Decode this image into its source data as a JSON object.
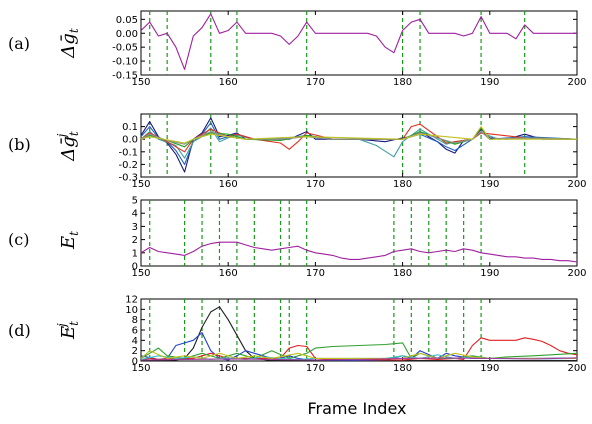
{
  "xlabel": "Frame Index",
  "chart_data": [
    {
      "type": "line",
      "panel_label": "(a)",
      "ylabel": "Δḡ_t",
      "xlim": [
        150,
        200
      ],
      "ylim": [
        -0.15,
        0.08
      ],
      "xticks": [
        "150",
        "160",
        "170",
        "180",
        "190",
        "200"
      ],
      "yticks": [
        "0.05",
        "0.00",
        "-0.05",
        "-0.10",
        "-0.15"
      ],
      "vlines": [
        151,
        153,
        158,
        161,
        169,
        180,
        182,
        189,
        194
      ],
      "series": [
        {
          "color": "#a020a0",
          "x": [
            150,
            151,
            152,
            153,
            154,
            155,
            156,
            157,
            158,
            159,
            160,
            161,
            162,
            163,
            164,
            165,
            166,
            167,
            168,
            169,
            170,
            171,
            172,
            173,
            174,
            175,
            176,
            177,
            178,
            179,
            180,
            181,
            182,
            183,
            184,
            185,
            186,
            187,
            188,
            189,
            190,
            191,
            192,
            193,
            194,
            195,
            196,
            197,
            198,
            199,
            200
          ],
          "y": [
            0.01,
            0.04,
            -0.01,
            0.0,
            -0.05,
            -0.13,
            -0.01,
            0.02,
            0.07,
            0.0,
            0.01,
            0.04,
            0.0,
            0.0,
            0.0,
            0.0,
            -0.01,
            -0.04,
            -0.01,
            0.04,
            0.0,
            0.0,
            0.0,
            0.0,
            0.0,
            0.0,
            0.0,
            -0.01,
            -0.05,
            -0.07,
            0.01,
            0.04,
            0.05,
            0.0,
            0.0,
            0.0,
            0.0,
            -0.01,
            0.0,
            0.06,
            0.0,
            0.0,
            0.0,
            -0.02,
            0.03,
            0.0,
            0.0,
            0.0,
            0.0,
            0.0,
            0.0
          ]
        }
      ]
    },
    {
      "type": "line",
      "panel_label": "(b)",
      "ylabel": "Δḡ_t^j",
      "xlim": [
        150,
        200
      ],
      "ylim": [
        -0.3,
        0.2
      ],
      "xticks": [
        "150",
        "160",
        "170",
        "180",
        "190",
        "200"
      ],
      "yticks": [
        "0.1",
        "0.0",
        "-0.1",
        "-0.2",
        "-0.3"
      ],
      "vlines": [
        151,
        153,
        158,
        161,
        169,
        180,
        182,
        189,
        194
      ],
      "series": [
        {
          "color": "#1a1a80",
          "x": [
            150,
            151,
            152,
            153,
            154,
            155,
            156,
            157,
            158,
            159,
            160,
            161,
            162,
            164,
            167,
            169,
            170,
            175,
            178,
            180,
            181,
            182,
            184,
            185,
            186,
            187,
            188,
            189,
            190,
            192,
            194,
            196,
            200
          ],
          "y": [
            0.03,
            0.14,
            0.02,
            -0.03,
            -0.12,
            -0.26,
            0.0,
            0.05,
            0.17,
            0.02,
            0.03,
            0.05,
            0.0,
            0.0,
            0.0,
            0.06,
            0.0,
            0.0,
            -0.02,
            0.01,
            0.02,
            0.06,
            -0.02,
            -0.08,
            -0.11,
            -0.01,
            0.0,
            0.08,
            0.01,
            0.0,
            0.04,
            0.0,
            0.0
          ]
        },
        {
          "color": "#2060c0",
          "x": [
            150,
            151,
            152,
            153,
            154,
            155,
            156,
            157,
            158,
            159,
            160,
            161,
            163,
            166,
            169,
            172,
            176,
            180,
            182,
            184,
            185,
            186,
            188,
            189,
            190,
            194,
            200
          ],
          "y": [
            0.02,
            0.1,
            0.01,
            -0.02,
            -0.09,
            -0.2,
            -0.02,
            0.04,
            0.13,
            0.0,
            0.02,
            0.04,
            0.0,
            0.0,
            0.03,
            0.0,
            0.0,
            0.0,
            0.04,
            -0.02,
            -0.06,
            -0.09,
            0.0,
            0.06,
            0.0,
            0.02,
            0.0
          ]
        },
        {
          "color": "#40a0a0",
          "x": [
            150,
            151,
            152,
            154,
            155,
            156,
            157,
            158,
            159,
            160,
            161,
            163,
            169,
            172,
            175,
            177,
            179,
            180,
            182,
            184,
            185,
            186,
            188,
            189,
            191,
            194,
            200
          ],
          "y": [
            0.0,
            0.06,
            0.0,
            -0.05,
            -0.15,
            -0.02,
            0.02,
            0.09,
            -0.02,
            0.01,
            0.03,
            0.0,
            0.02,
            0.0,
            0.0,
            -0.05,
            -0.14,
            -0.02,
            0.08,
            0.0,
            -0.04,
            -0.02,
            0.0,
            0.05,
            0.0,
            0.01,
            0.0
          ]
        },
        {
          "color": "#e03020",
          "x": [
            150,
            151,
            153,
            154,
            155,
            156,
            158,
            160,
            161,
            163,
            166,
            167,
            168,
            169,
            172,
            180,
            181,
            182,
            185,
            188,
            189,
            194,
            200
          ],
          "y": [
            0.0,
            0.05,
            -0.02,
            -0.06,
            -0.1,
            0.0,
            0.08,
            0.02,
            0.04,
            0.0,
            -0.03,
            -0.08,
            -0.02,
            0.05,
            0.0,
            0.0,
            0.1,
            0.12,
            -0.03,
            0.0,
            0.05,
            0.01,
            0.0
          ]
        },
        {
          "color": "#20a020",
          "x": [
            150,
            151,
            153,
            155,
            156,
            158,
            160,
            162,
            166,
            169,
            172,
            180,
            182,
            186,
            188,
            189,
            190,
            194,
            200
          ],
          "y": [
            0.0,
            0.03,
            -0.01,
            -0.06,
            0.0,
            0.05,
            0.04,
            0.0,
            -0.01,
            0.03,
            0.0,
            0.0,
            0.06,
            -0.04,
            0.0,
            0.09,
            0.0,
            0.01,
            0.0
          ]
        },
        {
          "color": "#909090",
          "x": [
            150,
            151,
            153,
            155,
            156,
            158,
            160,
            162,
            166,
            169,
            172,
            180,
            182,
            186,
            188,
            189,
            190,
            194,
            200
          ],
          "y": [
            0.0,
            0.04,
            -0.01,
            -0.04,
            0.0,
            0.06,
            0.02,
            0.0,
            0.0,
            0.02,
            0.0,
            0.0,
            0.05,
            -0.03,
            0.0,
            0.06,
            0.0,
            0.01,
            0.0
          ]
        },
        {
          "color": "#c0c020",
          "x": [
            150,
            151,
            155,
            156,
            158,
            162,
            169,
            180,
            182,
            188,
            189,
            190,
            200
          ],
          "y": [
            0.0,
            0.02,
            -0.03,
            0.0,
            0.04,
            0.0,
            0.02,
            0.0,
            0.04,
            0.0,
            0.1,
            0.0,
            0.0
          ]
        }
      ]
    },
    {
      "type": "line",
      "panel_label": "(c)",
      "ylabel": "E_t",
      "xlim": [
        150,
        200
      ],
      "ylim": [
        0,
        5
      ],
      "xticks": [
        "150",
        "160",
        "170",
        "180",
        "190",
        "200"
      ],
      "yticks": [
        "5",
        "4",
        "3",
        "2",
        "1",
        "0"
      ],
      "vlines": [
        151,
        155,
        157,
        159,
        161,
        163,
        166,
        167,
        169,
        179,
        181,
        183,
        185,
        187,
        189
      ],
      "series": [
        {
          "color": "#a020a0",
          "x": [
            150,
            151,
            152,
            153,
            154,
            155,
            156,
            157,
            158,
            159,
            160,
            161,
            162,
            163,
            164,
            165,
            166,
            167,
            168,
            169,
            170,
            171,
            172,
            173,
            174,
            175,
            176,
            177,
            178,
            179,
            180,
            181,
            182,
            183,
            184,
            185,
            186,
            187,
            188,
            189,
            190,
            191,
            192,
            193,
            194,
            195,
            196,
            197,
            198,
            199,
            200
          ],
          "y": [
            1.0,
            1.4,
            1.1,
            1.0,
            0.9,
            0.8,
            1.1,
            1.5,
            1.7,
            1.8,
            1.8,
            1.8,
            1.6,
            1.4,
            1.3,
            1.2,
            1.3,
            1.4,
            1.5,
            1.2,
            1.0,
            0.9,
            0.8,
            0.6,
            0.5,
            0.5,
            0.6,
            0.7,
            0.8,
            1.1,
            1.2,
            1.3,
            1.1,
            1.0,
            1.1,
            1.2,
            1.1,
            1.3,
            1.2,
            1.0,
            0.9,
            0.8,
            0.7,
            0.7,
            0.6,
            0.6,
            0.5,
            0.5,
            0.4,
            0.4,
            0.3
          ]
        }
      ]
    },
    {
      "type": "line",
      "panel_label": "(d)",
      "ylabel": "E_t^j",
      "xlim": [
        150,
        200
      ],
      "ylim": [
        0,
        12
      ],
      "xticks": [
        "150",
        "160",
        "170",
        "180",
        "190",
        "200"
      ],
      "yticks": [
        "12",
        "10",
        "8",
        "6",
        "4",
        "2",
        "0"
      ],
      "vlines": [
        151,
        155,
        157,
        159,
        161,
        163,
        166,
        167,
        169,
        179,
        181,
        183,
        185,
        187,
        189
      ],
      "series": [
        {
          "color": "#202020",
          "x": [
            150,
            153,
            154,
            155,
            156,
            157,
            158,
            159,
            160,
            161,
            162,
            163,
            165,
            200
          ],
          "y": [
            0.1,
            0.1,
            0.2,
            0.5,
            2.5,
            6.5,
            9.5,
            10.5,
            8.0,
            5.0,
            2.0,
            0.5,
            0.1,
            0.1
          ]
        },
        {
          "color": "#2040d0",
          "x": [
            150,
            152,
            153,
            154,
            155,
            156,
            157,
            158,
            159,
            160,
            161,
            162,
            163,
            164,
            165,
            166,
            167,
            168,
            169,
            170,
            175,
            178,
            180,
            181,
            182,
            184,
            185,
            186,
            188,
            190,
            195,
            200
          ],
          "y": [
            1.0,
            0.3,
            0.5,
            3.0,
            3.5,
            4.0,
            5.5,
            2.0,
            0.5,
            0.2,
            1.0,
            2.0,
            1.5,
            1.0,
            0.5,
            0.5,
            1.0,
            0.5,
            0.3,
            0.2,
            0.1,
            0.2,
            1.0,
            0.5,
            2.0,
            0.5,
            1.5,
            1.0,
            0.5,
            0.5,
            0.5,
            0.6
          ]
        },
        {
          "color": "#e02020",
          "x": [
            150,
            151,
            152,
            154,
            156,
            158,
            160,
            162,
            164,
            166,
            167,
            168,
            169,
            170,
            172,
            180,
            182,
            184,
            186,
            187,
            188,
            189,
            190,
            191,
            193,
            194,
            195,
            196,
            197,
            198,
            199,
            200
          ],
          "y": [
            0.2,
            0.5,
            0.3,
            0.5,
            0.5,
            1.5,
            0.5,
            0.5,
            0.5,
            0.5,
            2.5,
            3.0,
            2.8,
            0.5,
            0.3,
            0.2,
            0.5,
            0.3,
            0.5,
            0.3,
            3.0,
            4.5,
            4.0,
            4.0,
            4.0,
            4.5,
            4.2,
            3.8,
            3.0,
            2.0,
            1.5,
            1.2
          ]
        },
        {
          "color": "#30a030",
          "x": [
            150,
            151,
            152,
            153,
            155,
            157,
            159,
            161,
            163,
            165,
            167,
            169,
            170,
            172,
            175,
            178,
            180,
            181,
            182,
            184,
            186,
            188,
            190,
            192,
            195,
            200
          ],
          "y": [
            0.5,
            1.5,
            2.5,
            1.0,
            0.5,
            1.5,
            0.5,
            1.5,
            0.5,
            2.0,
            0.5,
            1.5,
            2.5,
            2.8,
            3.0,
            3.2,
            3.5,
            0.5,
            1.5,
            0.5,
            0.5,
            1.0,
            0.5,
            0.8,
            1.0,
            1.5
          ]
        },
        {
          "color": "#40c0c0",
          "x": [
            150,
            152,
            154,
            156,
            158,
            160,
            162,
            164,
            166,
            168,
            170,
            174,
            178,
            180,
            182,
            184,
            186,
            188,
            190,
            195,
            200
          ],
          "y": [
            0.3,
            1.0,
            0.5,
            0.8,
            0.3,
            0.6,
            0.3,
            0.8,
            0.5,
            0.3,
            0.5,
            0.5,
            0.5,
            1.0,
            0.5,
            1.2,
            0.5,
            0.8,
            0.5,
            0.4,
            0.5
          ]
        },
        {
          "color": "#c0c020",
          "x": [
            150,
            151,
            153,
            155,
            157,
            159,
            161,
            163,
            165,
            168,
            170,
            175,
            180,
            182,
            184,
            186,
            188,
            190,
            195,
            200
          ],
          "y": [
            0.5,
            2.0,
            0.5,
            1.0,
            0.5,
            1.5,
            0.5,
            1.0,
            0.5,
            1.5,
            0.5,
            0.5,
            0.5,
            1.5,
            0.5,
            1.5,
            0.8,
            0.5,
            0.5,
            0.5
          ]
        },
        {
          "color": "#a040a0",
          "x": [
            150,
            155,
            160,
            165,
            170,
            175,
            180,
            185,
            190,
            195,
            200
          ],
          "y": [
            0.2,
            0.3,
            0.4,
            0.3,
            0.2,
            0.3,
            0.5,
            0.6,
            0.5,
            0.4,
            0.6
          ]
        }
      ]
    }
  ]
}
